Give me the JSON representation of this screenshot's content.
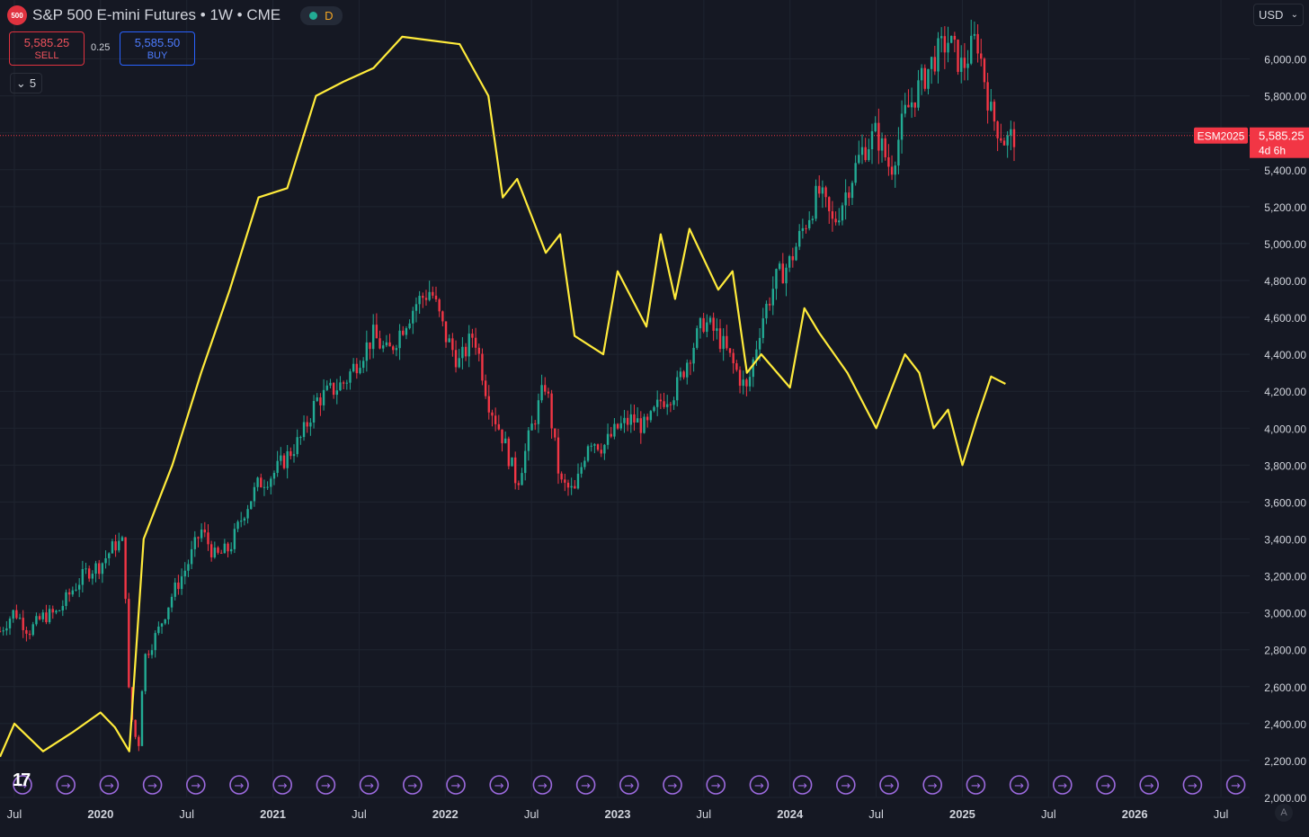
{
  "header": {
    "logo_text": "500",
    "title": "S&P 500 E-mini Futures • 1W • CME",
    "market_flag": "D"
  },
  "trade": {
    "sell_price": "5,585.25",
    "sell_label": "SELL",
    "spread": "0.25",
    "buy_price": "5,585.50",
    "buy_label": "BUY"
  },
  "indicators_toggle": "5",
  "currency": "USD",
  "price_tag": {
    "symbol": "ESM2025",
    "price": "5,585.25",
    "countdown": "4d 6h"
  },
  "colors": {
    "background": "#151823",
    "grid": "#1f2430",
    "up": "#22ab94",
    "down": "#f23645",
    "overlay": "#ffeb3b",
    "event_marker": "#9c6ade",
    "price_tag": "#f23645"
  },
  "chart_data": {
    "type": "candlestick",
    "interval": "1W",
    "y_axis": {
      "ylim": [
        2000,
        6100
      ],
      "ticks": [
        2000,
        2200,
        2400,
        2600,
        2800,
        3000,
        3200,
        3400,
        3600,
        3800,
        4000,
        4200,
        4400,
        4600,
        4800,
        5000,
        5200,
        5400,
        5600,
        5800,
        6000
      ],
      "tick_labels": [
        "2,000.00",
        "2,200.00",
        "2,400.00",
        "2,600.00",
        "2,800.00",
        "3,000.00",
        "3,200.00",
        "3,400.00",
        "3,600.00",
        "3,800.00",
        "4,000.00",
        "4,200.00",
        "4,400.00",
        "4,600.00",
        "4,800.00",
        "5,000.00",
        "5,200.00",
        "5,400.00",
        "5,600.00",
        "5,800.00",
        "6,000.00"
      ]
    },
    "x_axis": {
      "range": [
        "2019-06",
        "2026-09"
      ],
      "ticks": [
        {
          "date": "2019-07",
          "label": "Jul"
        },
        {
          "date": "2020-01",
          "label": "2020"
        },
        {
          "date": "2020-07",
          "label": "Jul"
        },
        {
          "date": "2021-01",
          "label": "2021"
        },
        {
          "date": "2021-07",
          "label": "Jul"
        },
        {
          "date": "2022-01",
          "label": "2022"
        },
        {
          "date": "2022-07",
          "label": "Jul"
        },
        {
          "date": "2023-01",
          "label": "2023"
        },
        {
          "date": "2023-07",
          "label": "Jul"
        },
        {
          "date": "2024-01",
          "label": "2024"
        },
        {
          "date": "2024-07",
          "label": "Jul"
        },
        {
          "date": "2025-01",
          "label": "2025"
        },
        {
          "date": "2025-07",
          "label": "Jul"
        },
        {
          "date": "2026-01",
          "label": "2026"
        },
        {
          "date": "2026-07",
          "label": "Jul"
        }
      ]
    },
    "main_series": {
      "name": "ESM2025",
      "close_path": [
        {
          "x": "2019-06",
          "y": 2900
        },
        {
          "x": "2019-07",
          "y": 3010
        },
        {
          "x": "2019-08",
          "y": 2900
        },
        {
          "x": "2019-09",
          "y": 2980
        },
        {
          "x": "2019-10",
          "y": 3000
        },
        {
          "x": "2019-11",
          "y": 3120
        },
        {
          "x": "2019-12",
          "y": 3220
        },
        {
          "x": "2020-01",
          "y": 3260
        },
        {
          "x": "2020-02",
          "y": 3370
        },
        {
          "x": "2020-02-20",
          "y": 3380
        },
        {
          "x": "2020-03",
          "y": 2500
        },
        {
          "x": "2020-03-20",
          "y": 2250
        },
        {
          "x": "2020-04",
          "y": 2750
        },
        {
          "x": "2020-05",
          "y": 2900
        },
        {
          "x": "2020-06",
          "y": 3100
        },
        {
          "x": "2020-07",
          "y": 3250
        },
        {
          "x": "2020-08",
          "y": 3450
        },
        {
          "x": "2020-09",
          "y": 3300
        },
        {
          "x": "2020-10",
          "y": 3350
        },
        {
          "x": "2020-11",
          "y": 3550
        },
        {
          "x": "2020-12",
          "y": 3700
        },
        {
          "x": "2021-01",
          "y": 3750
        },
        {
          "x": "2021-02",
          "y": 3850
        },
        {
          "x": "2021-03",
          "y": 3950
        },
        {
          "x": "2021-04",
          "y": 4150
        },
        {
          "x": "2021-05",
          "y": 4200
        },
        {
          "x": "2021-06",
          "y": 4250
        },
        {
          "x": "2021-07",
          "y": 4380
        },
        {
          "x": "2021-08",
          "y": 4500
        },
        {
          "x": "2021-09",
          "y": 4400
        },
        {
          "x": "2021-10",
          "y": 4550
        },
        {
          "x": "2021-11",
          "y": 4680
        },
        {
          "x": "2021-12",
          "y": 4750
        },
        {
          "x": "2022-01",
          "y": 4500
        },
        {
          "x": "2022-02",
          "y": 4350
        },
        {
          "x": "2022-03",
          "y": 4520
        },
        {
          "x": "2022-04",
          "y": 4150
        },
        {
          "x": "2022-05",
          "y": 3950
        },
        {
          "x": "2022-06",
          "y": 3700
        },
        {
          "x": "2022-07",
          "y": 4000
        },
        {
          "x": "2022-08",
          "y": 4250
        },
        {
          "x": "2022-09",
          "y": 3700
        },
        {
          "x": "2022-10",
          "y": 3650
        },
        {
          "x": "2022-11",
          "y": 3950
        },
        {
          "x": "2022-12",
          "y": 3900
        },
        {
          "x": "2023-01",
          "y": 4000
        },
        {
          "x": "2023-02",
          "y": 4050
        },
        {
          "x": "2023-03",
          "y": 4000
        },
        {
          "x": "2023-04",
          "y": 4150
        },
        {
          "x": "2023-05",
          "y": 4200
        },
        {
          "x": "2023-06",
          "y": 4400
        },
        {
          "x": "2023-07",
          "y": 4580
        },
        {
          "x": "2023-08",
          "y": 4500
        },
        {
          "x": "2023-09",
          "y": 4350
        },
        {
          "x": "2023-10",
          "y": 4200
        },
        {
          "x": "2023-11",
          "y": 4580
        },
        {
          "x": "2023-12",
          "y": 4800
        },
        {
          "x": "2024-01",
          "y": 4900
        },
        {
          "x": "2024-02",
          "y": 5100
        },
        {
          "x": "2024-03",
          "y": 5280
        },
        {
          "x": "2024-04",
          "y": 5100
        },
        {
          "x": "2024-05",
          "y": 5300
        },
        {
          "x": "2024-06",
          "y": 5500
        },
        {
          "x": "2024-07",
          "y": 5600
        },
        {
          "x": "2024-08",
          "y": 5400
        },
        {
          "x": "2024-09",
          "y": 5700
        },
        {
          "x": "2024-10",
          "y": 5850
        },
        {
          "x": "2024-11",
          "y": 6000
        },
        {
          "x": "2024-12",
          "y": 6100
        },
        {
          "x": "2025-01",
          "y": 5950
        },
        {
          "x": "2025-02",
          "y": 6120
        },
        {
          "x": "2025-03",
          "y": 5700
        },
        {
          "x": "2025-04",
          "y": 5550
        },
        {
          "x": "2025-04-20",
          "y": 5585.25
        }
      ],
      "last_price": 5585.25
    },
    "overlay_series": {
      "color": "#ffeb3b",
      "scale": "independent",
      "path": [
        {
          "x": "2019-06",
          "y": 2220
        },
        {
          "x": "2019-07",
          "y": 2400
        },
        {
          "x": "2019-09",
          "y": 2250
        },
        {
          "x": "2019-11",
          "y": 2350
        },
        {
          "x": "2020-01",
          "y": 2460
        },
        {
          "x": "2020-02",
          "y": 2380
        },
        {
          "x": "2020-03",
          "y": 2250
        },
        {
          "x": "2020-04",
          "y": 3400
        },
        {
          "x": "2020-06",
          "y": 3800
        },
        {
          "x": "2020-08",
          "y": 4300
        },
        {
          "x": "2020-10",
          "y": 4750
        },
        {
          "x": "2020-12",
          "y": 5250
        },
        {
          "x": "2021-02",
          "y": 5300
        },
        {
          "x": "2021-04",
          "y": 5800
        },
        {
          "x": "2021-06",
          "y": 5880
        },
        {
          "x": "2021-08",
          "y": 5950
        },
        {
          "x": "2021-10",
          "y": 6120
        },
        {
          "x": "2021-12",
          "y": 6100
        },
        {
          "x": "2022-02",
          "y": 6080
        },
        {
          "x": "2022-04",
          "y": 5800
        },
        {
          "x": "2022-05",
          "y": 5250
        },
        {
          "x": "2022-06",
          "y": 5350
        },
        {
          "x": "2022-08",
          "y": 4950
        },
        {
          "x": "2022-09",
          "y": 5050
        },
        {
          "x": "2022-10",
          "y": 4500
        },
        {
          "x": "2022-12",
          "y": 4400
        },
        {
          "x": "2023-01",
          "y": 4850
        },
        {
          "x": "2023-03",
          "y": 4550
        },
        {
          "x": "2023-04",
          "y": 5050
        },
        {
          "x": "2023-05",
          "y": 4700
        },
        {
          "x": "2023-06",
          "y": 5080
        },
        {
          "x": "2023-08",
          "y": 4750
        },
        {
          "x": "2023-09",
          "y": 4850
        },
        {
          "x": "2023-10",
          "y": 4300
        },
        {
          "x": "2023-11",
          "y": 4400
        },
        {
          "x": "2024-01",
          "y": 4220
        },
        {
          "x": "2024-02",
          "y": 4650
        },
        {
          "x": "2024-03",
          "y": 4520
        },
        {
          "x": "2024-05",
          "y": 4300
        },
        {
          "x": "2024-06",
          "y": 4150
        },
        {
          "x": "2024-07",
          "y": 4000
        },
        {
          "x": "2024-09",
          "y": 4400
        },
        {
          "x": "2024-10",
          "y": 4300
        },
        {
          "x": "2024-11",
          "y": 4000
        },
        {
          "x": "2024-12",
          "y": 4100
        },
        {
          "x": "2025-01",
          "y": 3800
        },
        {
          "x": "2025-02",
          "y": 4050
        },
        {
          "x": "2025-03",
          "y": 4280
        },
        {
          "x": "2025-04",
          "y": 4240
        }
      ]
    },
    "event_markers": {
      "count": 29,
      "glyph": "→"
    },
    "grid": true,
    "legend": "none"
  }
}
